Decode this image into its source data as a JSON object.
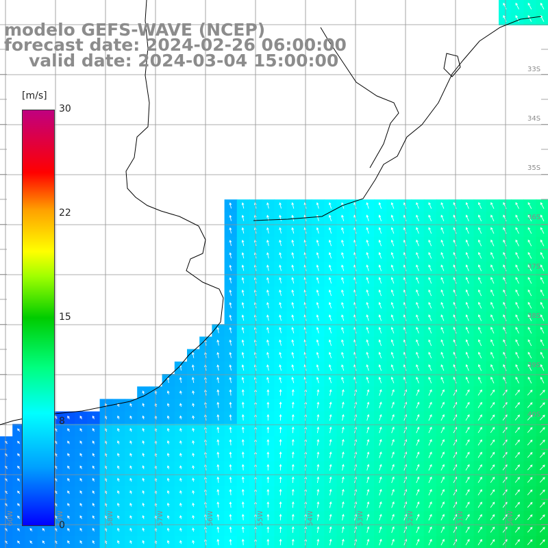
{
  "header": {
    "model": "modelo GEFS-WAVE (NCEP)",
    "forecast": "forecast date: 2024-02-26 06:00:00",
    "valid": "valid date: 2024-03-04 15:00:00"
  },
  "colorbar": {
    "unit": "[m/s]",
    "ticks": [
      "30",
      "22",
      "15",
      "8",
      "0"
    ],
    "colors": [
      "#0000ff",
      "#00a0ff",
      "#00ffff",
      "#00ff80",
      "#00cc00",
      "#ffff00",
      "#ff0000",
      "#c00080"
    ]
  },
  "grid": {
    "lat_labels": [
      "33S",
      "34S",
      "35S",
      "36S",
      "37S",
      "38S",
      "39S",
      "40S"
    ],
    "lon_labels": [
      "60W",
      "59W",
      "58W",
      "57W",
      "56W",
      "55W",
      "54W",
      "53W",
      "52W",
      "51W",
      "50W"
    ]
  },
  "colors": {
    "land": "#ffffff",
    "grid": "#909090",
    "coast": "#000000",
    "arrow": "#ffffff"
  }
}
